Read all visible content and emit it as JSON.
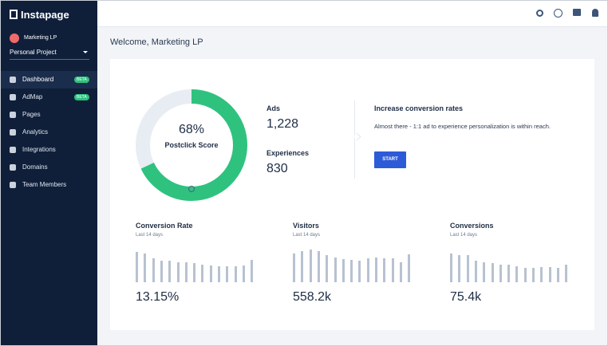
{
  "sidebar": {
    "logo": "Instapage",
    "account": "Marketing LP",
    "project": "Personal Project",
    "nav": [
      {
        "label": "Dashboard",
        "badge": "BETA"
      },
      {
        "label": "AdMap",
        "badge": "BETA"
      },
      {
        "label": "Pages"
      },
      {
        "label": "Analytics"
      },
      {
        "label": "Integrations"
      },
      {
        "label": "Domains"
      },
      {
        "label": "Team Members"
      }
    ]
  },
  "header": {
    "title": "Welcome, Marketing LP"
  },
  "score": {
    "value": 68,
    "label": "68%",
    "caption": "Postclick Score"
  },
  "stats": [
    {
      "label": "Ads",
      "value": "1,228"
    },
    {
      "label": "Experiences",
      "value": "830"
    }
  ],
  "tip": {
    "title": "Increase conversion rates",
    "text": "Almost there - 1:1 ad to experience personalization is within reach.",
    "button": "START"
  },
  "metrics": [
    {
      "title": "Conversion Rate",
      "period": "Last 14 days",
      "value": "13.15%",
      "bars": [
        38,
        36,
        30,
        27,
        27,
        25,
        25,
        24,
        22,
        21,
        20,
        20,
        20,
        21,
        28
      ]
    },
    {
      "title": "Visitors",
      "period": "Last 14 days",
      "value": "558.2k",
      "bars": [
        36,
        39,
        41,
        39,
        34,
        31,
        29,
        28,
        27,
        30,
        31,
        30,
        30,
        25,
        35
      ]
    },
    {
      "title": "Conversions",
      "period": "Last 14 days",
      "value": "75.4k",
      "bars": [
        36,
        34,
        34,
        27,
        25,
        24,
        22,
        22,
        20,
        18,
        18,
        19,
        19,
        18,
        22
      ]
    }
  ]
}
